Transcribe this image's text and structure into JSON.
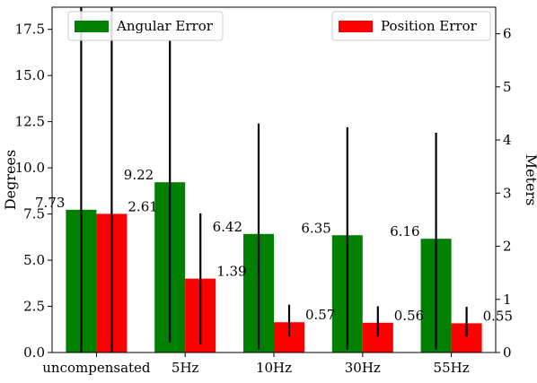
{
  "chart_data": {
    "type": "bar",
    "categories": [
      "uncompensated",
      "5Hz",
      "10Hz",
      "30Hz",
      "55Hz"
    ],
    "series": [
      {
        "name": "Angular Error",
        "axis": "left",
        "color": "#008000",
        "values": [
          7.73,
          9.22,
          6.42,
          6.35,
          6.16
        ],
        "labels": [
          "7.73",
          "9.22",
          "6.42",
          "6.35",
          "6.16"
        ],
        "error_low": [
          0.0,
          0.55,
          0.15,
          0.15,
          0.15
        ],
        "error_high": [
          18.8,
          16.9,
          12.4,
          12.2,
          11.9
        ]
      },
      {
        "name": "Position Error",
        "axis": "right",
        "color": "#ff0000",
        "values": [
          2.61,
          1.39,
          0.57,
          0.56,
          0.55
        ],
        "labels": [
          "2.61",
          "1.39",
          "0.57",
          "0.56",
          "0.55"
        ],
        "error_low": [
          0.0,
          0.15,
          0.3,
          0.3,
          0.3
        ],
        "error_high": [
          6.6,
          2.62,
          0.9,
          0.87,
          0.86
        ]
      }
    ],
    "ylabel": "Degrees",
    "ylim": [
      0,
      18.7
    ],
    "yticks": [
      0.0,
      2.5,
      5.0,
      7.5,
      10.0,
      12.5,
      15.0,
      17.5
    ],
    "ytick_labels": [
      "0.0",
      "2.5",
      "5.0",
      "7.5",
      "10.0",
      "12.5",
      "15.0",
      "17.5"
    ],
    "y2label": "Meters",
    "y2lim": [
      0,
      6.5
    ],
    "y2ticks": [
      0,
      1,
      2,
      3,
      4,
      5,
      6
    ],
    "y2tick_labels": [
      "0",
      "1",
      "2",
      "3",
      "4",
      "5",
      "6"
    ],
    "grid": false,
    "legend": [
      {
        "name": "Angular Error",
        "placement": "top-left"
      },
      {
        "name": "Position Error",
        "placement": "top-right"
      }
    ]
  }
}
